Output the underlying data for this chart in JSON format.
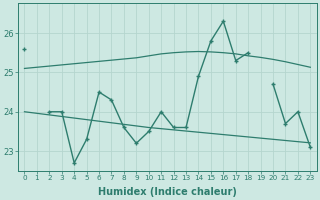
{
  "x": [
    0,
    1,
    2,
    3,
    4,
    5,
    6,
    7,
    8,
    9,
    10,
    11,
    12,
    13,
    14,
    15,
    16,
    17,
    18,
    19,
    20,
    21,
    22,
    23
  ],
  "line_top": [
    25.1,
    25.13,
    25.16,
    25.19,
    25.22,
    25.25,
    25.28,
    25.31,
    25.34,
    25.37,
    25.42,
    25.47,
    25.5,
    25.52,
    25.53,
    25.52,
    25.5,
    25.47,
    25.42,
    25.38,
    25.33,
    25.27,
    25.2,
    25.13
  ],
  "line_bot": [
    24.0,
    23.96,
    23.92,
    23.88,
    23.84,
    23.8,
    23.76,
    23.72,
    23.68,
    23.64,
    23.6,
    23.57,
    23.54,
    23.51,
    23.48,
    23.45,
    23.42,
    23.39,
    23.36,
    23.33,
    23.3,
    23.27,
    23.24,
    23.21
  ],
  "jagged_y": [
    25.6,
    null,
    24.0,
    24.0,
    22.7,
    23.3,
    24.5,
    24.3,
    23.6,
    23.2,
    23.5,
    24.0,
    23.6,
    23.6,
    24.9,
    25.8,
    26.3,
    25.3,
    25.5,
    null,
    24.7,
    23.7,
    24.0,
    23.1
  ],
  "color": "#2e7d6e",
  "bg_color": "#cde8e2",
  "grid_color": "#b5d5ce",
  "xlabel": "Humidex (Indice chaleur)",
  "ylim": [
    22.5,
    26.75
  ],
  "yticks": [
    23,
    24,
    25,
    26
  ],
  "xticks": [
    0,
    1,
    2,
    3,
    4,
    5,
    6,
    7,
    8,
    9,
    10,
    11,
    12,
    13,
    14,
    15,
    16,
    17,
    18,
    19,
    20,
    21,
    22,
    23
  ]
}
